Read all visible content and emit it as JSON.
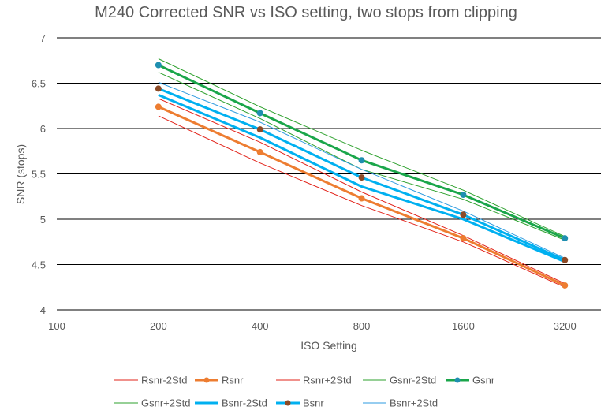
{
  "chart_data": {
    "type": "line",
    "title": "M240 Corrected SNR vs ISO setting, two stops from clipping",
    "xlabel": "ISO Setting",
    "ylabel": "SNR (stops)",
    "x_scale": "log2",
    "x_ticks": [
      "100",
      "200",
      "400",
      "800",
      "1600",
      "3200"
    ],
    "x_tick_values": [
      100,
      200,
      400,
      800,
      1600,
      3200
    ],
    "ylim": [
      4,
      7
    ],
    "y_ticks": [
      "4",
      "4.5",
      "5",
      "5.5",
      "6",
      "6.5",
      "7"
    ],
    "y_tick_values": [
      4,
      4.5,
      5,
      5.5,
      6,
      6.5,
      7
    ],
    "grid": "horizontal",
    "legend_position": "bottom",
    "x": [
      200,
      400,
      800,
      1600,
      3200
    ],
    "series": [
      {
        "name": "Rsnr-2Std",
        "values": [
          6.14,
          5.62,
          5.15,
          4.75,
          4.25
        ],
        "color": "#e2231a",
        "width": 1,
        "marker": false
      },
      {
        "name": "Rsnr",
        "values": [
          6.24,
          5.74,
          5.23,
          4.79,
          4.27
        ],
        "color": "#ed7d31",
        "width": 3,
        "marker": true,
        "marker_color": "#ed7d31"
      },
      {
        "name": "Rsnr+2Std",
        "values": [
          6.33,
          5.85,
          5.3,
          4.82,
          4.29
        ],
        "color": "#e2231a",
        "width": 1,
        "marker": false
      },
      {
        "name": "Gsnr-2Std",
        "values": [
          6.62,
          6.11,
          5.55,
          5.22,
          4.77
        ],
        "color": "#2ca02c",
        "width": 1,
        "marker": false
      },
      {
        "name": "Gsnr",
        "values": [
          6.7,
          6.17,
          5.65,
          5.27,
          4.79
        ],
        "color": "#1aa64a",
        "width": 3,
        "marker": true,
        "marker_color": "#1f8fb0"
      },
      {
        "name": "Gsnr+2Std",
        "values": [
          6.77,
          6.24,
          5.76,
          5.32,
          4.81
        ],
        "color": "#2ca02c",
        "width": 1,
        "marker": false
      },
      {
        "name": "Bsnr-2Std",
        "values": [
          6.37,
          5.9,
          5.36,
          5.0,
          4.53
        ],
        "color": "#00b0f0",
        "width": 3,
        "marker": false
      },
      {
        "name": "Bsnr",
        "values": [
          6.44,
          5.99,
          5.46,
          5.05,
          4.55
        ],
        "color": "#00b0f0",
        "width": 3,
        "marker": true,
        "marker_color": "#8c4a26"
      },
      {
        "name": "Bsnr+2Std",
        "values": [
          6.51,
          6.07,
          5.55,
          5.09,
          4.57
        ],
        "color": "#2e9be0",
        "width": 1,
        "marker": false
      }
    ]
  }
}
